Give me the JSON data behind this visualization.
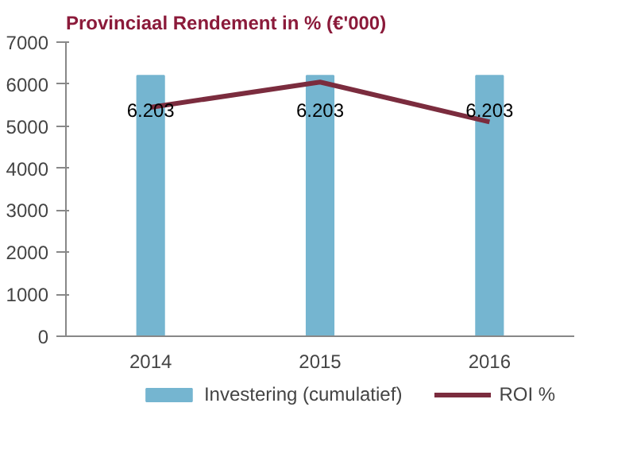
{
  "chart_data": {
    "type": "bar",
    "title": "Provinciaal Rendement in % (€'000)",
    "categories": [
      "2014",
      "2015",
      "2016"
    ],
    "series": [
      {
        "name": "Investering (cumulatief)",
        "color": "#75b5d0",
        "values": [
          6203,
          6203,
          6203
        ],
        "value_labels": [
          "6.203",
          "6.203",
          "6.203"
        ]
      },
      {
        "name": "ROI %",
        "type": "line",
        "color": "#7b2c3e",
        "values": [
          5450,
          6050,
          5100
        ]
      }
    ],
    "ylim": [
      0,
      7000
    ],
    "yticks": [
      0,
      1000,
      2000,
      3000,
      4000,
      5000,
      6000,
      7000
    ],
    "grid": false,
    "legend": "bottom"
  }
}
